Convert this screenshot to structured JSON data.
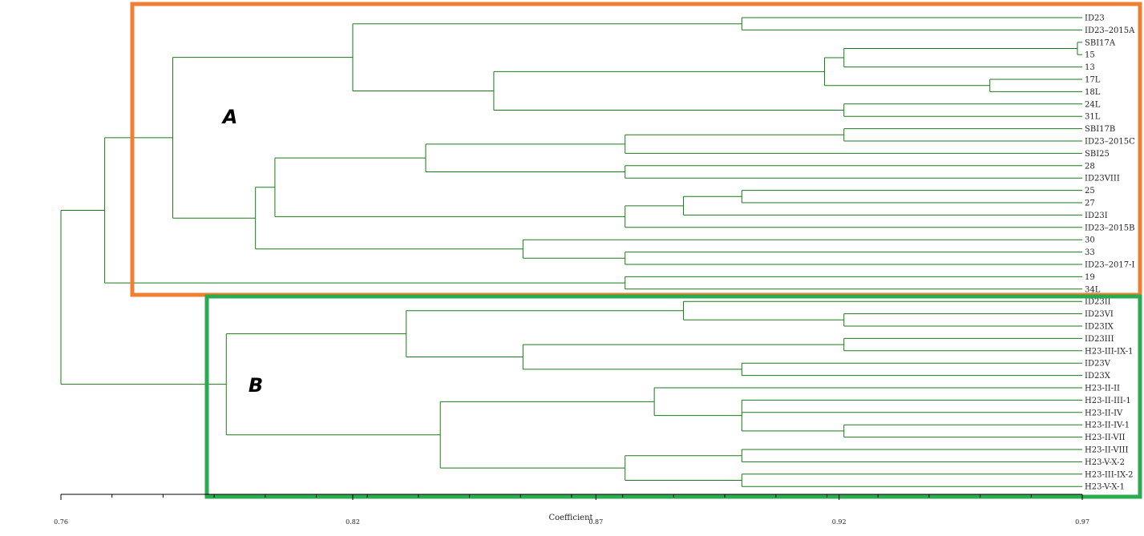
{
  "axis": {
    "title": "Coefficient",
    "min": 0.76,
    "max": 0.97,
    "ticks": [
      "0.76",
      "0.82",
      "0.87",
      "0.92",
      "0.97"
    ],
    "tick_values": [
      0.76,
      0.82,
      0.87,
      0.92,
      0.97
    ]
  },
  "groups": [
    {
      "label": "A",
      "color": "#f07f32"
    },
    {
      "label": "B",
      "color": "#2aab4f"
    }
  ],
  "colors": {
    "branch": "#1a7a1a"
  },
  "leaves": [
    "ID23",
    "ID23–2015A",
    "SBI17A",
    "15",
    "13",
    "17L",
    "18L",
    "24L",
    "31L",
    "SBI17B",
    "ID23–2015C",
    "SBI25",
    "28",
    "ID23VIII",
    "25",
    "27",
    "ID23I",
    "ID23–2015B",
    "30",
    "33",
    "ID23–2017-I",
    "19",
    "34L",
    "ID23II",
    "ID23VI",
    "ID23IX",
    "ID23III",
    "H23-III-IX-1",
    "ID23V",
    "ID23X",
    "H23-II-II",
    "H23-II-III-1",
    "H23-II-IV",
    "H23-II-IV-1",
    "H23-II-VII",
    "H23-II-VIII",
    "H23-V-X-2",
    "H23-III-IX-2",
    "H23-V-X-1"
  ],
  "tree": {
    "h": 0.76,
    "c": [
      {
        "h": 0.769,
        "c": [
          {
            "h": 0.783,
            "c": [
              {
                "h": 0.82,
                "c": [
                  {
                    "h": 0.9,
                    "c": [
                      0,
                      1
                    ]
                  },
                  {
                    "h": 0.849,
                    "c": [
                      {
                        "h": 0.917,
                        "c": [
                          {
                            "h": 0.921,
                            "c": [
                              {
                                "h": 0.969,
                                "c": [
                                  2,
                                  3
                                ]
                              },
                              4
                            ]
                          },
                          {
                            "h": 0.951,
                            "c": [
                              5,
                              6
                            ]
                          }
                        ]
                      },
                      {
                        "h": 0.921,
                        "c": [
                          7,
                          8
                        ]
                      }
                    ]
                  }
                ]
              },
              {
                "h": 0.8,
                "c": [
                  {
                    "h": 0.804,
                    "c": [
                      {
                        "h": 0.835,
                        "c": [
                          {
                            "h": 0.876,
                            "c": [
                              {
                                "h": 0.921,
                                "c": [
                                  9,
                                  10
                                ]
                              },
                              11
                            ]
                          },
                          {
                            "h": 0.876,
                            "c": [
                              12,
                              13
                            ]
                          }
                        ]
                      },
                      {
                        "h": 0.876,
                        "c": [
                          {
                            "h": 0.888,
                            "c": [
                              {
                                "h": 0.9,
                                "c": [
                                  14,
                                  15
                                ]
                              },
                              16
                            ]
                          },
                          17
                        ]
                      }
                    ]
                  },
                  {
                    "h": 0.855,
                    "c": [
                      18,
                      {
                        "h": 0.876,
                        "c": [
                          19,
                          20
                        ]
                      }
                    ]
                  }
                ]
              }
            ]
          },
          {
            "h": 0.876,
            "c": [
              21,
              22
            ]
          }
        ]
      },
      {
        "h": 0.794,
        "c": [
          {
            "h": 0.831,
            "c": [
              {
                "h": 0.888,
                "c": [
                  23,
                  {
                    "h": 0.921,
                    "c": [
                      24,
                      25
                    ]
                  }
                ]
              },
              {
                "h": 0.855,
                "c": [
                  {
                    "h": 0.921,
                    "c": [
                      26,
                      27
                    ]
                  },
                  {
                    "h": 0.9,
                    "c": [
                      28,
                      29
                    ]
                  }
                ]
              }
            ]
          },
          {
            "h": 0.838,
            "c": [
              {
                "h": 0.882,
                "c": [
                  30,
                  {
                    "h": 0.9,
                    "c": [
                      31,
                      32,
                      {
                        "h": 0.921,
                        "c": [
                          33,
                          34
                        ]
                      }
                    ]
                  }
                ]
              },
              {
                "h": 0.876,
                "c": [
                  {
                    "h": 0.9,
                    "c": [
                      35,
                      36
                    ]
                  },
                  {
                    "h": 0.9,
                    "c": [
                      37,
                      38
                    ]
                  }
                ]
              }
            ]
          }
        ]
      }
    ]
  }
}
